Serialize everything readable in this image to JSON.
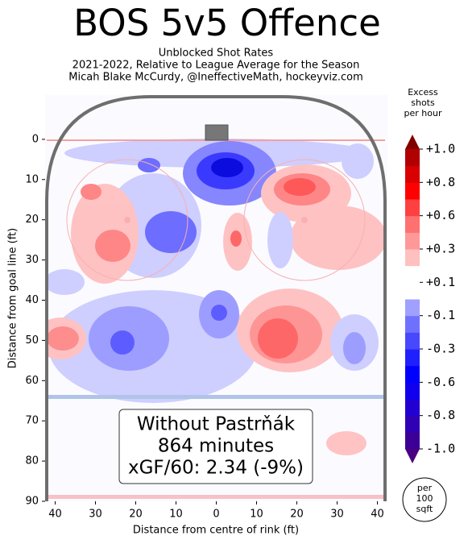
{
  "chart_data": {
    "type": "contour",
    "title": "BOS 5v5 Offence",
    "subtitle": [
      "Unblocked Shot Rates",
      "2021-2022, Relative to League Average for the Season",
      "Micah Blake McCurdy, @IneffectiveMath, hockeyviz.com"
    ],
    "xlabel": "Distance from centre of rink (ft)",
    "ylabel": "Distance from goal line (ft)",
    "xlim": [
      -42.5,
      42.5
    ],
    "xticks": [
      {
        "value": -40,
        "label": "40"
      },
      {
        "value": -30,
        "label": "30"
      },
      {
        "value": -20,
        "label": "20"
      },
      {
        "value": -10,
        "label": "10"
      },
      0,
      10,
      20,
      30,
      40
    ],
    "ylim": [
      -11,
      90
    ],
    "y_inverted": true,
    "yticks": [
      0,
      10,
      20,
      30,
      40,
      50,
      60,
      70,
      80,
      90
    ],
    "annotation": [
      "Without Pastrňák",
      "864 minutes",
      "xGF/60: 2.34 (-9%)"
    ],
    "colorbar": {
      "title": "Excess shots per hour",
      "colors": [
        "#3c0096",
        "#3000b4",
        "#2200d2",
        "#1000ee",
        "#0000ff",
        "#2020ff",
        "#4848ff",
        "#7070ff",
        "#a0a0ff",
        "#ffffff",
        "#ffffff",
        "#ffc0c0",
        "#ff9898",
        "#ff7070",
        "#ff4040",
        "#ff0000",
        "#d80000",
        "#b00000"
      ],
      "extend_colors": [
        "#4b0082",
        "#800000"
      ],
      "ticks": [
        {
          "value": -1.0,
          "label": "-1.0"
        },
        {
          "value": -0.8,
          "label": "-0.8"
        },
        {
          "value": -0.6,
          "label": "-0.6"
        },
        {
          "value": -0.3,
          "label": "-0.3"
        },
        {
          "value": -0.1,
          "label": "-0.1"
        },
        {
          "value": 0.1,
          "label": "+0.1"
        },
        {
          "value": 0.3,
          "label": "+0.3"
        },
        {
          "value": 0.6,
          "label": "+0.6"
        },
        {
          "value": 0.8,
          "label": "+0.8"
        },
        {
          "value": 1.0,
          "label": "+1.0"
        }
      ]
    },
    "size_legend": "per 100 sqft"
  }
}
